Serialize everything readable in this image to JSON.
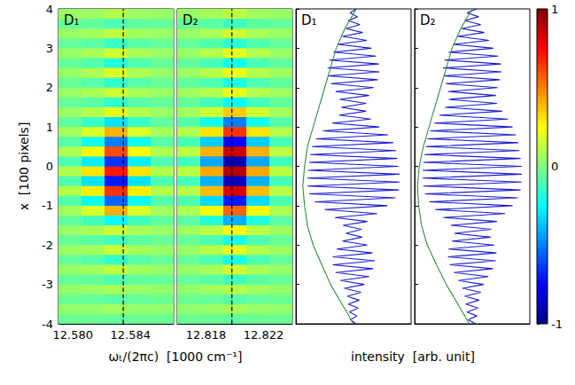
{
  "chart_data": [
    {
      "type": "heatmap",
      "label": "D₁",
      "xlabel": "ωₜ/(2πc)  [1000 cm⁻¹]",
      "ylabel": "x  [100 pixels]",
      "xlim": [
        12.579,
        12.587
      ],
      "xticks": [
        {
          "value": 12.58,
          "label": "12.580"
        },
        12.584
      ],
      "ylim": [
        -4,
        4
      ],
      "yticks": [
        -4,
        -3,
        -2,
        -1,
        0,
        1,
        2,
        3,
        4
      ],
      "dashed_line": 12.5835,
      "x_edges": [
        12.579,
        12.5806,
        12.5822,
        12.5838,
        12.5854,
        12.587
      ],
      "y_edges": [
        4,
        3.75,
        3.5,
        3.25,
        3,
        2.75,
        2.5,
        2.25,
        2,
        1.75,
        1.5,
        1.25,
        1,
        0.75,
        0.5,
        0.25,
        0,
        -0.25,
        -0.5,
        -0.75,
        -1,
        -1.25,
        -1.5,
        -1.75,
        -2,
        -2.25,
        -2.5,
        -2.75,
        -3,
        -3.25,
        -3.5,
        -3.75,
        -4
      ],
      "cells": [
        [
          0.05,
          0.06,
          0.1,
          0.06,
          0.05
        ],
        [
          -0.05,
          -0.06,
          -0.1,
          -0.06,
          -0.05
        ],
        [
          0.05,
          0.07,
          0.12,
          0.07,
          0.05
        ],
        [
          -0.05,
          -0.07,
          -0.14,
          -0.07,
          -0.05
        ],
        [
          0.05,
          0.08,
          0.16,
          0.08,
          0.05
        ],
        [
          -0.05,
          -0.09,
          -0.18,
          -0.09,
          -0.05
        ],
        [
          0.05,
          0.09,
          0.18,
          0.09,
          0.05
        ],
        [
          -0.05,
          -0.08,
          -0.16,
          -0.08,
          -0.05
        ],
        [
          0.05,
          0.08,
          0.15,
          0.08,
          0.05
        ],
        [
          -0.05,
          -0.08,
          -0.15,
          -0.08,
          -0.05
        ],
        [
          0.05,
          0.1,
          0.2,
          0.1,
          0.05
        ],
        [
          -0.06,
          -0.14,
          -0.3,
          -0.14,
          -0.06
        ],
        [
          0.07,
          0.18,
          0.4,
          0.18,
          0.07
        ],
        [
          -0.08,
          -0.22,
          -0.5,
          -0.22,
          -0.08
        ],
        [
          0.09,
          0.26,
          0.6,
          0.26,
          0.09
        ],
        [
          -0.1,
          -0.28,
          -0.65,
          -0.28,
          -0.1
        ],
        [
          0.1,
          0.3,
          0.7,
          0.3,
          0.1
        ],
        [
          -0.1,
          -0.3,
          -0.7,
          -0.3,
          -0.1
        ],
        [
          0.1,
          0.28,
          0.65,
          0.28,
          0.1
        ],
        [
          -0.09,
          -0.24,
          -0.55,
          -0.24,
          -0.09
        ],
        [
          0.07,
          0.18,
          0.4,
          0.18,
          0.07
        ],
        [
          -0.06,
          -0.12,
          -0.25,
          -0.12,
          -0.06
        ],
        [
          0.05,
          0.08,
          0.15,
          0.08,
          0.05
        ],
        [
          -0.05,
          -0.07,
          -0.12,
          -0.07,
          -0.05
        ],
        [
          0.05,
          0.07,
          0.14,
          0.07,
          0.05
        ],
        [
          -0.05,
          -0.08,
          -0.15,
          -0.08,
          -0.05
        ],
        [
          0.05,
          0.07,
          0.13,
          0.07,
          0.05
        ],
        [
          -0.05,
          -0.06,
          -0.1,
          -0.06,
          -0.05
        ],
        [
          0.04,
          0.05,
          0.08,
          0.05,
          0.04
        ],
        [
          -0.04,
          -0.05,
          -0.07,
          -0.05,
          -0.04
        ],
        [
          0.04,
          0.04,
          0.06,
          0.04,
          0.04
        ],
        [
          -0.04,
          -0.04,
          -0.05,
          -0.04,
          -0.04
        ]
      ]
    },
    {
      "type": "heatmap",
      "label": "D₂",
      "tick_labels": "x",
      "xlim": [
        12.816,
        12.824
      ],
      "xticks": [
        12.818,
        12.822
      ],
      "ylim": [
        -4,
        4
      ],
      "yticks": [
        -4,
        -3,
        -2,
        -1,
        0,
        1,
        2,
        3,
        4
      ],
      "dashed_line": 12.8198,
      "x_edges": [
        12.816,
        12.8176,
        12.8192,
        12.8208,
        12.8224,
        12.824
      ],
      "y_edges": [
        4,
        3.75,
        3.5,
        3.25,
        3,
        2.75,
        2.5,
        2.25,
        2,
        1.75,
        1.5,
        1.25,
        1,
        0.75,
        0.5,
        0.25,
        0,
        -0.25,
        -0.5,
        -0.75,
        -1,
        -1.25,
        -1.5,
        -1.75,
        -2,
        -2.25,
        -2.5,
        -2.75,
        -3,
        -3.25,
        -3.5,
        -3.75,
        -4
      ],
      "cells": [
        [
          0.05,
          0.07,
          0.12,
          0.07,
          0.05
        ],
        [
          -0.05,
          -0.07,
          -0.13,
          -0.07,
          -0.05
        ],
        [
          0.05,
          0.08,
          0.15,
          0.08,
          0.05
        ],
        [
          -0.05,
          -0.09,
          -0.17,
          -0.09,
          -0.05
        ],
        [
          0.05,
          0.1,
          0.2,
          0.1,
          0.05
        ],
        [
          -0.06,
          -0.11,
          -0.22,
          -0.11,
          -0.06
        ],
        [
          0.06,
          0.11,
          0.22,
          0.11,
          0.06
        ],
        [
          -0.06,
          -0.1,
          -0.2,
          -0.1,
          -0.06
        ],
        [
          0.06,
          0.1,
          0.2,
          0.1,
          0.06
        ],
        [
          -0.06,
          -0.12,
          -0.25,
          -0.12,
          -0.06
        ],
        [
          0.07,
          0.16,
          0.35,
          0.16,
          0.07
        ],
        [
          -0.08,
          -0.22,
          -0.5,
          -0.22,
          -0.08
        ],
        [
          0.1,
          0.3,
          0.65,
          0.3,
          0.1
        ],
        [
          -0.11,
          -0.35,
          -0.75,
          -0.35,
          -0.11
        ],
        [
          0.12,
          0.4,
          0.85,
          0.4,
          0.12
        ],
        [
          -0.12,
          -0.42,
          -0.9,
          -0.42,
          -0.12
        ],
        [
          0.12,
          0.42,
          0.9,
          0.42,
          0.12
        ],
        [
          -0.12,
          -0.4,
          -0.88,
          -0.4,
          -0.12
        ],
        [
          0.11,
          0.38,
          0.82,
          0.38,
          0.11
        ],
        [
          -0.1,
          -0.32,
          -0.7,
          -0.32,
          -0.1
        ],
        [
          0.09,
          0.25,
          0.55,
          0.25,
          0.09
        ],
        [
          -0.07,
          -0.18,
          -0.4,
          -0.18,
          -0.07
        ],
        [
          0.06,
          0.12,
          0.25,
          0.12,
          0.06
        ],
        [
          -0.05,
          -0.1,
          -0.2,
          -0.1,
          -0.05
        ],
        [
          0.05,
          0.1,
          0.2,
          0.1,
          0.05
        ],
        [
          -0.05,
          -0.1,
          -0.2,
          -0.1,
          -0.05
        ],
        [
          0.05,
          0.08,
          0.16,
          0.08,
          0.05
        ],
        [
          -0.05,
          -0.07,
          -0.13,
          -0.07,
          -0.05
        ],
        [
          0.04,
          0.06,
          0.1,
          0.06,
          0.04
        ],
        [
          -0.04,
          -0.05,
          -0.08,
          -0.05,
          -0.04
        ],
        [
          0.04,
          0.05,
          0.07,
          0.05,
          0.04
        ],
        [
          -0.04,
          -0.04,
          -0.06,
          -0.04,
          -0.04
        ]
      ]
    },
    {
      "type": "line",
      "label": "D₁",
      "tick_labels": false,
      "xlabel": "intensity  [arb. unit]",
      "xlim": [
        -1,
        1
      ],
      "ylim": [
        -4,
        4
      ],
      "yticks": [
        -4,
        -3,
        -2,
        -1,
        0,
        1,
        2,
        3,
        4
      ],
      "series": [
        {
          "color": "#1c1cd0",
          "x": [
            0.05,
            -0.06,
            0.07,
            -0.09,
            0.11,
            -0.13,
            0.16,
            -0.19,
            0.23,
            -0.27,
            0.31,
            -0.35,
            0.39,
            -0.42,
            0.44,
            -0.45,
            0.45,
            -0.44,
            0.42,
            -0.39,
            0.35,
            -0.31,
            0.27,
            -0.24,
            0.22,
            -0.21,
            0.22,
            -0.25,
            0.3,
            -0.37,
            0.45,
            -0.53,
            0.6,
            -0.65,
            0.69,
            -0.72,
            0.74,
            -0.75,
            0.76,
            -0.77,
            0.78,
            -0.79,
            0.8,
            -0.8,
            0.8,
            -0.8,
            0.79,
            -0.77,
            0.73,
            -0.67,
            0.59,
            -0.5,
            0.41,
            -0.32,
            0.24,
            -0.18,
            0.14,
            -0.13,
            0.15,
            -0.19,
            0.24,
            -0.29,
            0.33,
            -0.36,
            0.37,
            -0.36,
            0.34,
            -0.31,
            0.27,
            -0.23,
            0.19,
            -0.16,
            0.13,
            -0.11,
            0.1,
            -0.09,
            0.08,
            -0.07,
            0.06,
            -0.05,
            0.04
          ],
          "y": [
            4,
            3.9,
            3.8,
            3.7,
            3.6,
            3.5,
            3.4,
            3.3,
            3.2,
            3.1,
            3,
            2.9,
            2.8,
            2.7,
            2.6,
            2.5,
            2.4,
            2.3,
            2.2,
            2.1,
            2,
            1.9,
            1.8,
            1.7,
            1.6,
            1.5,
            1.4,
            1.3,
            1.2,
            1.1,
            1,
            0.9,
            0.8,
            0.7,
            0.6,
            0.5,
            0.4,
            0.3,
            0.2,
            0.1,
            0,
            -0.1,
            -0.2,
            -0.3,
            -0.4,
            -0.5,
            -0.6,
            -0.7,
            -0.8,
            -0.9,
            -1,
            -1.1,
            -1.2,
            -1.3,
            -1.4,
            -1.5,
            -1.6,
            -1.7,
            -1.8,
            -1.9,
            -2,
            -2.1,
            -2.2,
            -2.3,
            -2.4,
            -2.5,
            -2.6,
            -2.7,
            -2.8,
            -2.9,
            -3,
            -3.1,
            -3.2,
            -3.3,
            -3.4,
            -3.5,
            -3.6,
            -3.7,
            -3.8,
            -3.9,
            -4
          ]
        },
        {
          "color": "#2f8f3f",
          "x": [
            0.05,
            -0.15,
            -0.3,
            -0.4,
            -0.5,
            -0.6,
            -0.7,
            -0.8,
            -0.85,
            -0.88,
            -0.85,
            -0.8,
            -0.7,
            -0.55,
            -0.4,
            -0.2,
            0
          ],
          "y": [
            4,
            3.5,
            3,
            2.5,
            2,
            1.5,
            1,
            0.5,
            0,
            -0.5,
            -1,
            -1.5,
            -2,
            -2.5,
            -3,
            -3.5,
            -4
          ]
        }
      ]
    },
    {
      "type": "line",
      "label": "D₂",
      "tick_labels": false,
      "xlim": [
        -1,
        1
      ],
      "ylim": [
        -4,
        4
      ],
      "yticks": [
        -4,
        -3,
        -2,
        -1,
        0,
        1,
        2,
        3,
        4
      ],
      "series": [
        {
          "color": "#1c1cd0",
          "x": [
            0.08,
            -0.09,
            0.11,
            -0.13,
            0.15,
            -0.18,
            0.21,
            -0.25,
            0.29,
            -0.33,
            0.37,
            -0.41,
            0.45,
            -0.48,
            0.5,
            -0.51,
            0.51,
            -0.5,
            0.48,
            -0.46,
            0.44,
            -0.42,
            0.41,
            -0.41,
            0.43,
            -0.47,
            0.52,
            -0.57,
            0.62,
            -0.66,
            0.7,
            -0.73,
            0.76,
            -0.78,
            0.8,
            -0.81,
            0.82,
            -0.83,
            0.84,
            -0.85,
            0.86,
            -0.86,
            0.86,
            -0.86,
            0.86,
            -0.85,
            0.84,
            -0.82,
            0.79,
            -0.75,
            0.7,
            -0.64,
            0.57,
            -0.5,
            0.43,
            -0.37,
            0.33,
            -0.31,
            0.32,
            -0.35,
            0.38,
            -0.41,
            0.42,
            -0.42,
            0.41,
            -0.39,
            0.36,
            -0.32,
            0.28,
            -0.24,
            0.2,
            -0.17,
            0.15,
            -0.13,
            0.12,
            -0.11,
            0.1,
            -0.09,
            0.08,
            -0.07,
            0.06
          ],
          "y": [
            4,
            3.9,
            3.8,
            3.7,
            3.6,
            3.5,
            3.4,
            3.3,
            3.2,
            3.1,
            3,
            2.9,
            2.8,
            2.7,
            2.6,
            2.5,
            2.4,
            2.3,
            2.2,
            2.1,
            2,
            1.9,
            1.8,
            1.7,
            1.6,
            1.5,
            1.4,
            1.3,
            1.2,
            1.1,
            1,
            0.9,
            0.8,
            0.7,
            0.6,
            0.5,
            0.4,
            0.3,
            0.2,
            0.1,
            0,
            -0.1,
            -0.2,
            -0.3,
            -0.4,
            -0.5,
            -0.6,
            -0.7,
            -0.8,
            -0.9,
            -1,
            -1.1,
            -1.2,
            -1.3,
            -1.4,
            -1.5,
            -1.6,
            -1.7,
            -1.8,
            -1.9,
            -2,
            -2.1,
            -2.2,
            -2.3,
            -2.4,
            -2.5,
            -2.6,
            -2.7,
            -2.8,
            -2.9,
            -3,
            -3.1,
            -3.2,
            -3.3,
            -3.4,
            -3.5,
            -3.6,
            -3.7,
            -3.8,
            -3.9,
            -4
          ]
        },
        {
          "color": "#2f8f3f",
          "x": [
            0,
            -0.2,
            -0.35,
            -0.45,
            -0.55,
            -0.65,
            -0.75,
            -0.85,
            -0.92,
            -0.95,
            -0.93,
            -0.88,
            -0.78,
            -0.62,
            -0.45,
            -0.25,
            -0.05
          ],
          "y": [
            4,
            3.5,
            3,
            2.5,
            2,
            1.5,
            1,
            0.5,
            0,
            -0.5,
            -1,
            -1.5,
            -2,
            -2.5,
            -3,
            -3.5,
            -4
          ]
        }
      ]
    },
    {
      "type": "colorbar",
      "tick_labels": "y",
      "ylim": [
        -1,
        1
      ],
      "yticks": [
        -1,
        0,
        1
      ]
    }
  ]
}
